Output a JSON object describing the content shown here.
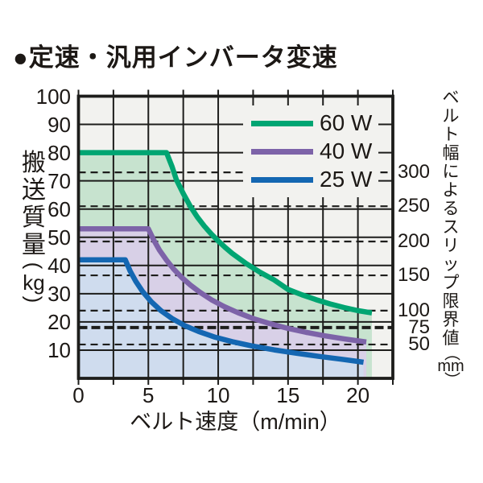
{
  "page_title": "●定速・汎用インバータ変速",
  "colors": {
    "plot_background": "#f2f2ef",
    "grid": "#1d1d1b",
    "text": "#1c1815",
    "series_60w": "#00a572",
    "series_40w": "#7d63a8",
    "series_25w": "#1467b2",
    "fill_60w": "#c7e3cf",
    "fill_40w": "#d8d0e7",
    "fill_25w": "#cfdcee"
  },
  "chart_data": {
    "type": "line",
    "title": "定速・汎用インバータ変速",
    "grid": true,
    "legend_position": "top-right",
    "x": {
      "label": "ベルト速度（m/min）",
      "ticks": [
        0,
        5,
        10,
        15,
        20
      ],
      "minor_step": 2.5,
      "range": [
        0,
        22.5
      ]
    },
    "y": {
      "label": "搬送質量",
      "unit": "kg",
      "open": "(",
      "close": ")",
      "ticks": [
        100,
        90,
        80,
        70,
        60,
        50,
        40,
        30,
        20,
        10
      ],
      "range": [
        0,
        100
      ]
    },
    "y2": {
      "label": "ベルト幅によるスリップ限界値",
      "unit": "mm",
      "open": "（",
      "close": "）",
      "guides": [
        {
          "mm": "300",
          "kg": 73,
          "bold": false
        },
        {
          "mm": "250",
          "kg": 61,
          "bold": false
        },
        {
          "mm": "200",
          "kg": 48.5,
          "bold": false
        },
        {
          "mm": "150",
          "kg": 36.5,
          "bold": false
        },
        {
          "mm": "100",
          "kg": 24,
          "bold": false
        },
        {
          "mm": "75",
          "kg": 18,
          "bold": true
        },
        {
          "mm": "50",
          "kg": 12,
          "bold": false
        }
      ]
    },
    "series": [
      {
        "name": "60 W",
        "color": "#00a572",
        "fill": "#c7e3cf",
        "points": [
          [
            0,
            80
          ],
          [
            6.3,
            80
          ],
          [
            6.7,
            75
          ],
          [
            7,
            70.5
          ],
          [
            7.5,
            65.5
          ],
          [
            8,
            61
          ],
          [
            8.5,
            57.2
          ],
          [
            9,
            54
          ],
          [
            9.5,
            51.2
          ],
          [
            10,
            48.7
          ],
          [
            10.5,
            46.4
          ],
          [
            11,
            44.3
          ],
          [
            12,
            40.7
          ],
          [
            13,
            37.6
          ],
          [
            14,
            34.9
          ],
          [
            15,
            31.5
          ],
          [
            16,
            29.6
          ],
          [
            17,
            27.9
          ],
          [
            18,
            26.4
          ],
          [
            19,
            25.1
          ],
          [
            20,
            24
          ],
          [
            21,
            23.2
          ]
        ]
      },
      {
        "name": "40 W",
        "color": "#7d63a8",
        "fill": "#d8d0e7",
        "points": [
          [
            0,
            53
          ],
          [
            5,
            53
          ],
          [
            5.4,
            48.9
          ],
          [
            5.8,
            45.4
          ],
          [
            6.3,
            41.9
          ],
          [
            6.8,
            38.8
          ],
          [
            7.4,
            35.7
          ],
          [
            8,
            33.1
          ],
          [
            8.7,
            30.5
          ],
          [
            9.5,
            27.9
          ],
          [
            10.4,
            25.5
          ],
          [
            11.4,
            23.3
          ],
          [
            12.5,
            21.2
          ],
          [
            13.7,
            19.4
          ],
          [
            15,
            17.7
          ],
          [
            16.3,
            16.3
          ],
          [
            17.6,
            15.1
          ],
          [
            19,
            14
          ],
          [
            20,
            13.3
          ],
          [
            20.6,
            12.9
          ]
        ]
      },
      {
        "name": "25 W",
        "color": "#1467b2",
        "fill": "#cfdcee",
        "points": [
          [
            0,
            42
          ],
          [
            3.35,
            42
          ],
          [
            3.7,
            38
          ],
          [
            4.1,
            34.4
          ],
          [
            4.6,
            30.7
          ],
          [
            5.2,
            27.2
          ],
          [
            5.9,
            24
          ],
          [
            6.7,
            21.2
          ],
          [
            7.6,
            18.7
          ],
          [
            8.6,
            16.6
          ],
          [
            9.7,
            14.7
          ],
          [
            11,
            13
          ],
          [
            12.4,
            11.5
          ],
          [
            14,
            10.1
          ],
          [
            15.6,
            8.9
          ],
          [
            17.2,
            7.8
          ],
          [
            18.8,
            6.8
          ],
          [
            20,
            6
          ],
          [
            20.4,
            5.7
          ]
        ]
      }
    ]
  }
}
